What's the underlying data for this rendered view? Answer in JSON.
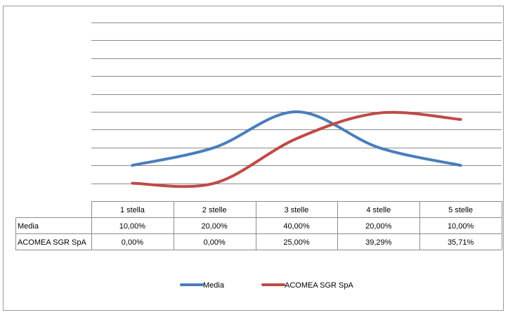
{
  "chart_data": {
    "type": "line",
    "categories": [
      "1 stella",
      "2 stelle",
      "3 stelle",
      "4 stelle",
      "5 stelle"
    ],
    "series": [
      {
        "name": "Media",
        "color": "#4a7ebb",
        "values": [
          10.0,
          20.0,
          40.0,
          20.0,
          10.0
        ],
        "labels": [
          "10,00%",
          "20,00%",
          "40,00%",
          "20,00%",
          "10,00%"
        ]
      },
      {
        "name": "ACOMEA SGR SpA",
        "color": "#be4b48",
        "values": [
          0.0,
          0.0,
          25.0,
          39.29,
          35.71
        ],
        "labels": [
          "0,00%",
          "0,00%",
          "25,00%",
          "39,29%",
          "35,71%"
        ]
      }
    ],
    "ylim": [
      -10,
      90
    ],
    "grid": true,
    "smooth": true,
    "legend": "bottom",
    "data_table": true,
    "axis_labels_shown": false
  }
}
